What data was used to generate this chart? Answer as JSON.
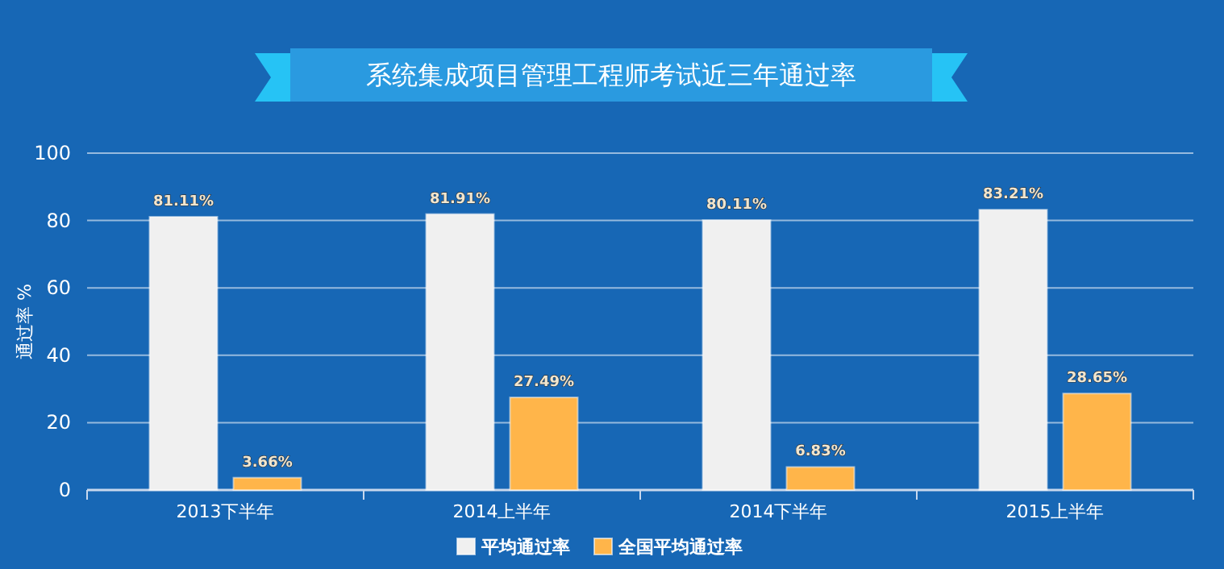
{
  "chart_data": {
    "type": "bar",
    "title": "系统集成项目管理工程师考试近三年通过率",
    "ylabel": "通过率 %",
    "categories": [
      "2013下半年",
      "2014上半年",
      "2014下半年",
      "2015上半年"
    ],
    "series": [
      {
        "name": "平均通过率",
        "color": "#f0f0f0",
        "values": [
          81.11,
          81.91,
          80.11,
          83.21
        ],
        "value_labels": [
          "81.11%",
          "81.91%",
          "80.11%",
          "83.21%"
        ]
      },
      {
        "name": "全国平均通过率",
        "color": "#ffb54a",
        "values": [
          3.66,
          27.49,
          6.83,
          28.65
        ],
        "value_labels": [
          "3.66%",
          "27.49%",
          "6.83%",
          "28.65%"
        ]
      }
    ],
    "ylim": [
      0,
      100
    ],
    "yticks": [
      0,
      20,
      40,
      60,
      80,
      100
    ],
    "grid": "y",
    "legend": "bottom"
  }
}
